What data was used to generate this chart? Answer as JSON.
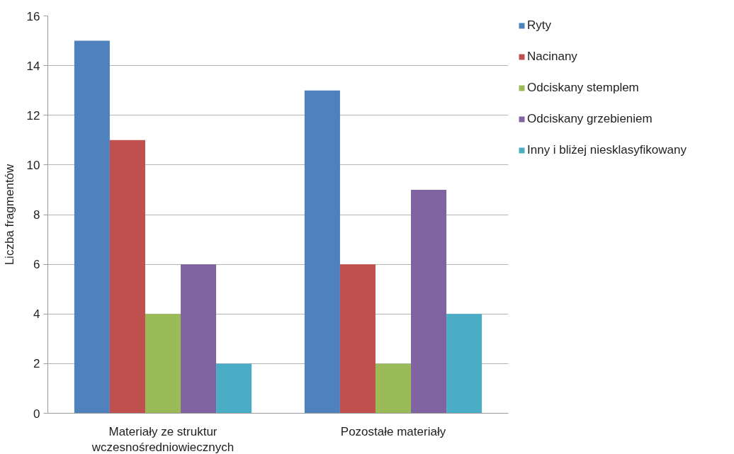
{
  "chart_data": {
    "type": "bar",
    "ylabel": "Liczba fragmentów",
    "categories": [
      "Materiały ze struktur wczesnośredniowiecznych",
      "Pozostałe materiały"
    ],
    "series": [
      {
        "name": "Ryty",
        "color": "#4f81bd",
        "values": [
          15,
          13
        ]
      },
      {
        "name": "Nacinany",
        "color": "#c0504d",
        "values": [
          11,
          6
        ]
      },
      {
        "name": "Odciskany stemplem",
        "color": "#9bbb59",
        "values": [
          4,
          2
        ]
      },
      {
        "name": "Odciskany grzebieniem",
        "color": "#8064a2",
        "values": [
          6,
          9
        ]
      },
      {
        "name": "Inny i bliżej niesklasyfikowany",
        "color": "#4bacc6",
        "values": [
          2,
          4
        ]
      }
    ],
    "ylim": [
      0,
      16
    ],
    "yticks": [
      0,
      2,
      4,
      6,
      8,
      10,
      12,
      14,
      16
    ],
    "grid": "y",
    "legend": "right"
  }
}
